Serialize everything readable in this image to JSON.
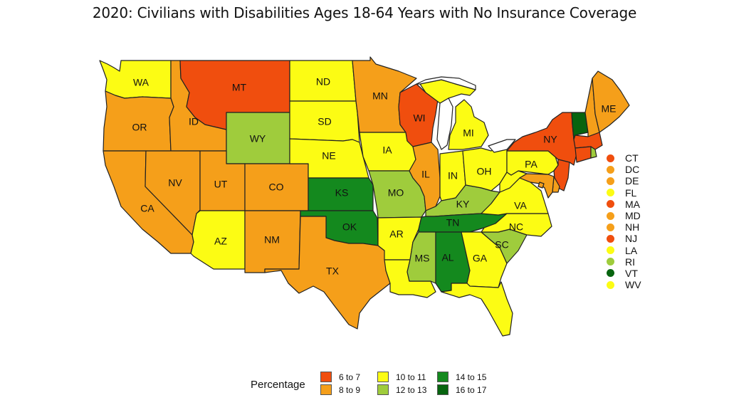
{
  "title": "2020: Civilians with Disabilities Ages 18-64 Years with No Insurance Coverage",
  "colors": {
    "6 to 7": "#f04e0e",
    "8 to 9": "#f59f1a",
    "10 to 11": "#fcfc14",
    "12 to 13": "#9fcc3c",
    "14 to 15": "#14891e",
    "16 to 17": "#07640f"
  },
  "legend": {
    "title": "Percentage",
    "items": [
      {
        "label": "6 to 7",
        "color": "#f04e0e"
      },
      {
        "label": "8 to 9",
        "color": "#f59f1a"
      },
      {
        "label": "10 to 11",
        "color": "#fcfc14"
      },
      {
        "label": "12 to 13",
        "color": "#9fcc3c"
      },
      {
        "label": "14 to 15",
        "color": "#14891e"
      },
      {
        "label": "16 to 17",
        "color": "#07640f"
      }
    ]
  },
  "states": {
    "WA": "10 to 11",
    "OR": "8 to 9",
    "CA": "8 to 9",
    "ID": "8 to 9",
    "NV": "8 to 9",
    "MT": "6 to 7",
    "WY": "12 to 13",
    "UT": "8 to 9",
    "AZ": "10 to 11",
    "CO": "8 to 9",
    "NM": "8 to 9",
    "ND": "10 to 11",
    "SD": "10 to 11",
    "NE": "10 to 11",
    "KS": "14 to 15",
    "OK": "14 to 15",
    "TX": "8 to 9",
    "MN": "8 to 9",
    "IA": "10 to 11",
    "MO": "12 to 13",
    "AR": "10 to 11",
    "LA": "10 to 11",
    "WI": "6 to 7",
    "IL": "8 to 9",
    "MI": "10 to 11",
    "IN": "10 to 11",
    "OH": "10 to 11",
    "KY": "12 to 13",
    "TN": "14 to 15",
    "MS": "12 to 13",
    "AL": "14 to 15",
    "GA": "10 to 11",
    "FL": "10 to 11",
    "SC": "12 to 13",
    "NC": "10 to 11",
    "VA": "10 to 11",
    "WV": "10 to 11",
    "PA": "10 to 11",
    "NY": "6 to 7",
    "VT": "16 to 17",
    "NH": "8 to 9",
    "ME": "8 to 9",
    "MA": "6 to 7",
    "CT": "6 to 7",
    "RI": "12 to 13",
    "NJ": "6 to 7",
    "DE": "8 to 9",
    "MD": "8 to 9",
    "DC": "8 to 9"
  },
  "small_states": [
    {
      "code": "CT",
      "category": "6 to 7"
    },
    {
      "code": "DC",
      "category": "8 to 9"
    },
    {
      "code": "DE",
      "category": "8 to 9"
    },
    {
      "code": "FL",
      "category": "10 to 11"
    },
    {
      "code": "MA",
      "category": "6 to 7"
    },
    {
      "code": "MD",
      "category": "8 to 9"
    },
    {
      "code": "NH",
      "category": "8 to 9"
    },
    {
      "code": "NJ",
      "category": "6 to 7"
    },
    {
      "code": "LA",
      "category": "10 to 11"
    },
    {
      "code": "RI",
      "category": "12 to 13"
    },
    {
      "code": "VT",
      "category": "16 to 17"
    },
    {
      "code": "WV",
      "category": "10 to 11"
    }
  ],
  "map_labels": [
    "WA",
    "OR",
    "CA",
    "ID",
    "NV",
    "MT",
    "WY",
    "UT",
    "AZ",
    "CO",
    "NM",
    "ND",
    "SD",
    "NE",
    "KS",
    "OK",
    "TX",
    "MN",
    "IA",
    "MO",
    "AR",
    "WI",
    "IL",
    "MI",
    "IN",
    "OH",
    "KY",
    "TN",
    "MS",
    "AL",
    "GA",
    "SC",
    "NC",
    "VA",
    "PA",
    "NY",
    "ME"
  ]
}
